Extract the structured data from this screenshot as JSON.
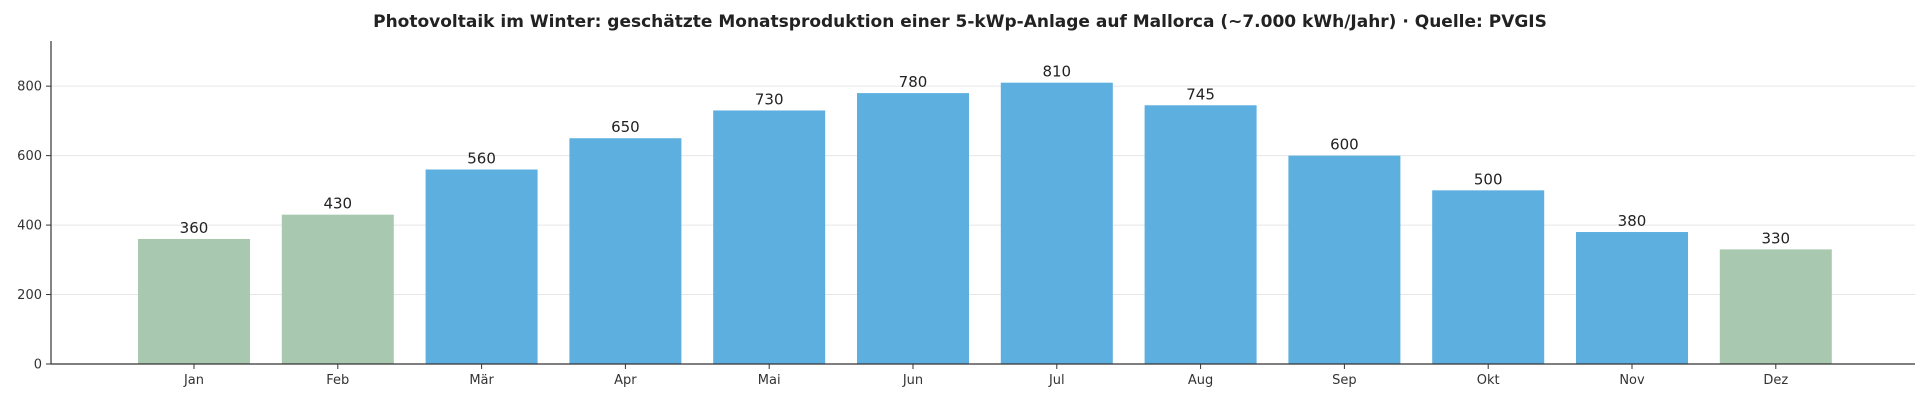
{
  "chart_data": {
    "type": "bar",
    "title": "Photovoltaik im Winter: geschätzte Monatsproduktion einer 5-kWp-Anlage auf Mallorca (~7.000 kWh/Jahr) · Quelle: PVGIS",
    "xlabel": "",
    "ylabel": "",
    "categories": [
      "Jan",
      "Feb",
      "Mär",
      "Apr",
      "Mai",
      "Jun",
      "Jul",
      "Aug",
      "Sep",
      "Okt",
      "Nov",
      "Dez"
    ],
    "values": [
      360,
      430,
      560,
      650,
      730,
      780,
      810,
      745,
      600,
      500,
      380,
      330
    ],
    "data_labels": [
      "360",
      "430",
      "560",
      "650",
      "730",
      "780",
      "810",
      "745",
      "600",
      "500",
      "380",
      "330"
    ],
    "bar_colors": [
      "#a8c8b0",
      "#a8c8b0",
      "#5dafe0",
      "#5dafe0",
      "#5dafe0",
      "#5dafe0",
      "#5dafe0",
      "#5dafe0",
      "#5dafe0",
      "#5dafe0",
      "#5dafe0",
      "#a8c8b0"
    ],
    "yticks": [
      0,
      200,
      400,
      600,
      800
    ],
    "ylim": [
      0,
      930
    ],
    "grid": "horizontal",
    "legend": "none",
    "colors": {
      "winter": "#a8c8b0",
      "other": "#5dafe0",
      "axis": "#333333",
      "grid": "#e6e6e6"
    }
  }
}
